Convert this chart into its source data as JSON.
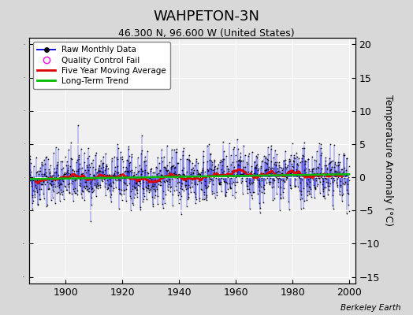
{
  "title": "WAHPETON-3N",
  "subtitle": "46.300 N, 96.600 W (United States)",
  "ylabel_right": "Temperature Anomaly (°C)",
  "credit": "Berkeley Earth",
  "xlim": [
    1887,
    2002
  ],
  "ylim": [
    -16,
    21
  ],
  "yticks": [
    -15,
    -10,
    -5,
    0,
    5,
    10,
    15,
    20
  ],
  "xticks": [
    1900,
    1920,
    1940,
    1960,
    1980,
    2000
  ],
  "fig_bg_color": "#d8d8d8",
  "plot_bg_color": "#f0f0f0",
  "grid_color": "#ffffff",
  "seed": 42,
  "n_months": 1356,
  "start_year": 1887,
  "noise_scale": 2.8,
  "moving_avg_window": 60,
  "line_color": "#0000dd",
  "dot_color": "#000000",
  "ma_color": "#dd0000",
  "trend_color": "#00bb00",
  "qc_marker_color": "#ff00ff"
}
